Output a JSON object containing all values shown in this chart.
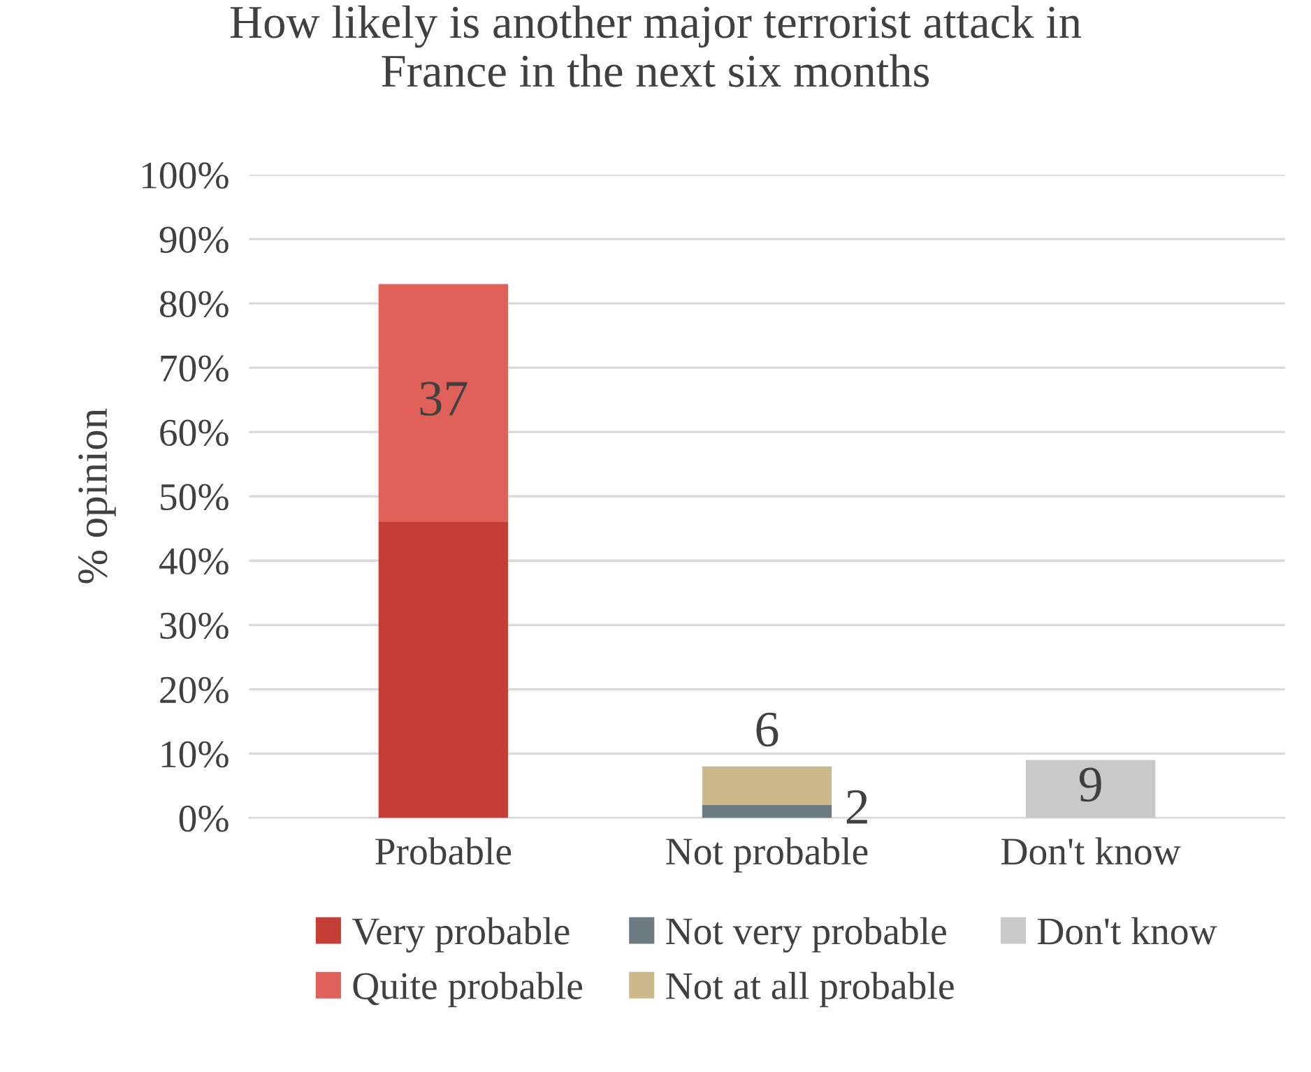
{
  "chart_data": {
    "type": "bar",
    "title": "How likely is another major terrorist attack in\nFrance in the next six months",
    "ylabel": "% opinion",
    "categories": [
      "Probable",
      "Not probable",
      "Don't know"
    ],
    "stacked": true,
    "series": [
      {
        "name": "Very probable",
        "color": "#c43e36",
        "values": [
          46,
          null,
          null
        ],
        "value_labels": [
          null,
          null,
          null
        ]
      },
      {
        "name": "Quite probable",
        "color": "#e0605a",
        "values": [
          37,
          null,
          null
        ],
        "value_labels": [
          "37",
          null,
          null
        ]
      },
      {
        "name": "Not very probable",
        "color": "#6c7a82",
        "values": [
          null,
          2,
          null
        ],
        "value_labels": [
          null,
          "2",
          null
        ]
      },
      {
        "name": "Not at all probable",
        "color": "#cdb88a",
        "values": [
          null,
          6,
          null
        ],
        "value_labels": [
          null,
          "6",
          null
        ]
      },
      {
        "name": "Don't know",
        "color": "#c9c9c9",
        "values": [
          null,
          null,
          9
        ],
        "value_labels": [
          null,
          null,
          "9"
        ]
      }
    ],
    "ylim": [
      0,
      100
    ],
    "yticks": [
      {
        "value": 0,
        "label": "0%"
      },
      {
        "value": 10,
        "label": "10%"
      },
      {
        "value": 20,
        "label": "20%"
      },
      {
        "value": 30,
        "label": "30%"
      },
      {
        "value": 40,
        "label": "40%"
      },
      {
        "value": 50,
        "label": "50%"
      },
      {
        "value": 60,
        "label": "60%"
      },
      {
        "value": 70,
        "label": "70%"
      },
      {
        "value": 80,
        "label": "80%"
      },
      {
        "value": 90,
        "label": "90%"
      },
      {
        "value": 100,
        "label": "100%"
      }
    ],
    "grid": "y",
    "legend": "bottom"
  }
}
